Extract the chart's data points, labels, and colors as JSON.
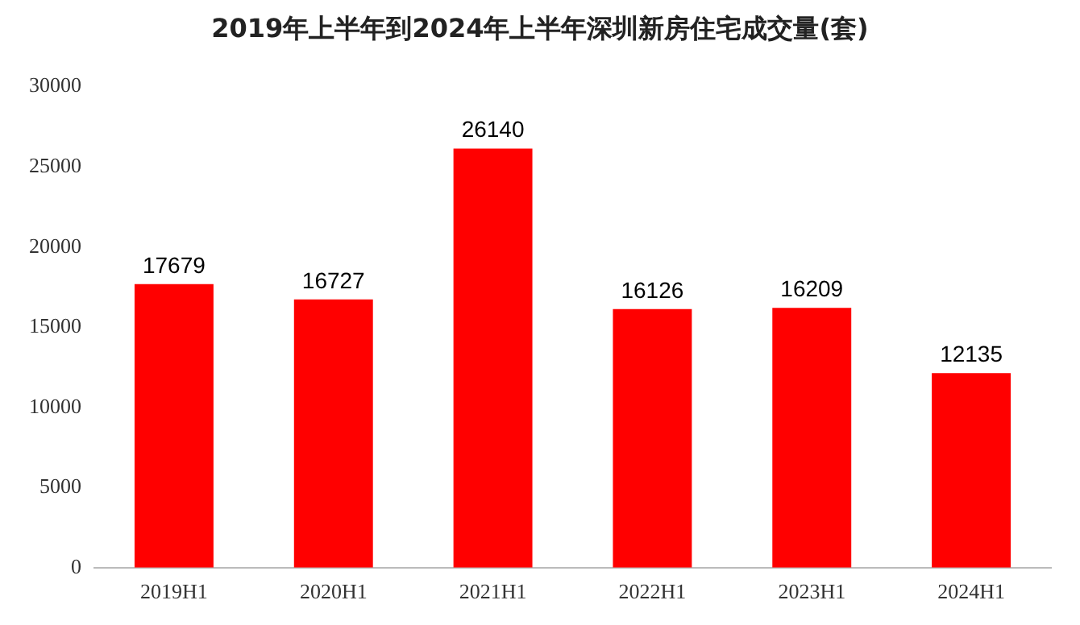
{
  "chart_data": {
    "type": "bar",
    "title": "2019年上半年到2024年上半年深圳新房住宅成交量(套)",
    "categories": [
      "2019H1",
      "2020H1",
      "2021H1",
      "2022H1",
      "2023H1",
      "2024H1"
    ],
    "values": [
      17679,
      16727,
      26140,
      16126,
      16209,
      12135
    ],
    "color": "#ff0000",
    "ylim": [
      0,
      30000
    ],
    "yticks": [
      0,
      5000,
      10000,
      15000,
      20000,
      25000,
      30000
    ],
    "grid": false,
    "legend": false,
    "data_labels": true
  }
}
